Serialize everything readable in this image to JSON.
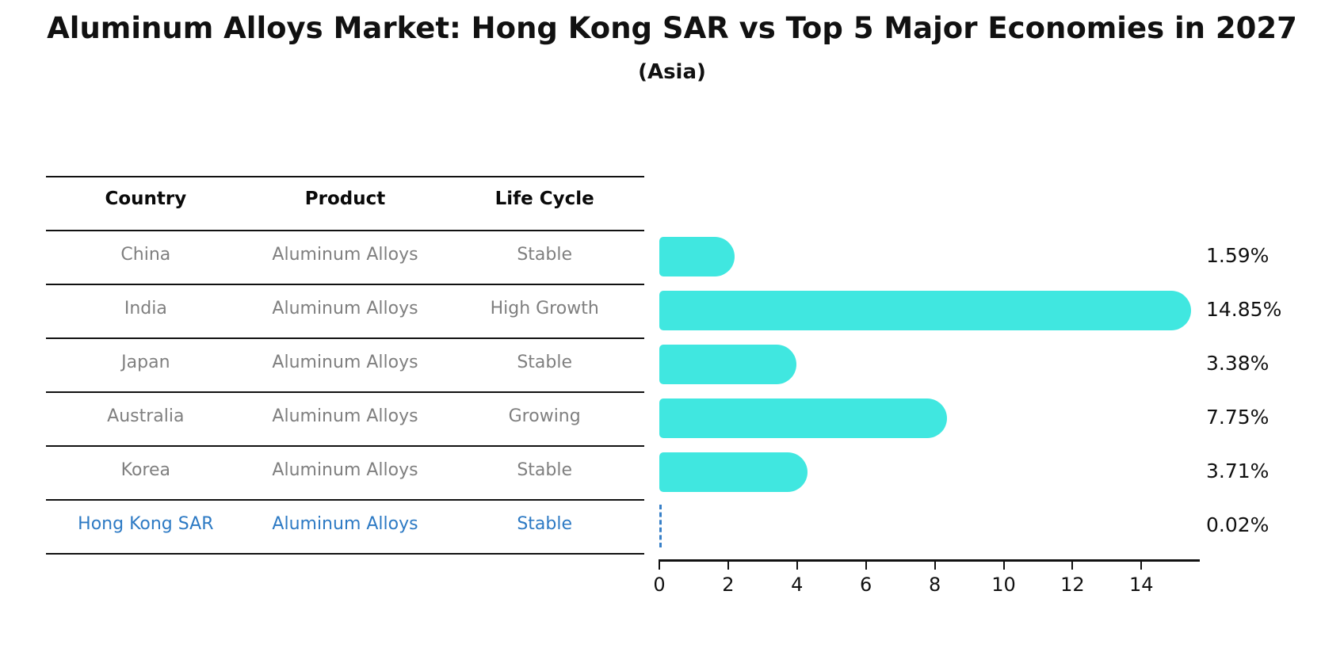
{
  "title": "Aluminum Alloys Market: Hong Kong SAR vs Top 5 Major Economies in 2027",
  "subtitle": "(Asia)",
  "table": {
    "headers": [
      "Country",
      "Product",
      "Life Cycle"
    ],
    "rows": [
      {
        "country": "China",
        "product": "Aluminum Alloys",
        "life_cycle": "Stable",
        "highlight": false
      },
      {
        "country": "India",
        "product": "Aluminum Alloys",
        "life_cycle": "High Growth",
        "highlight": false
      },
      {
        "country": "Japan",
        "product": "Aluminum Alloys",
        "life_cycle": "Stable",
        "highlight": false
      },
      {
        "country": "Australia",
        "product": "Aluminum Alloys",
        "life_cycle": "Growing",
        "highlight": false
      },
      {
        "country": "Korea",
        "product": "Aluminum Alloys",
        "life_cycle": "Stable",
        "highlight": false
      },
      {
        "country": "Hong Kong SAR",
        "product": "Aluminum Alloys",
        "life_cycle": "Stable",
        "highlight": true
      }
    ]
  },
  "chart_data": {
    "type": "bar",
    "orientation": "horizontal",
    "categories": [
      "China",
      "India",
      "Japan",
      "Australia",
      "Korea",
      "Hong Kong SAR"
    ],
    "values": [
      1.59,
      14.85,
      3.38,
      7.75,
      3.71,
      0.02
    ],
    "value_labels": [
      "1.59%",
      "14.85%",
      "3.38%",
      "7.75%",
      "3.71%",
      "0.02%"
    ],
    "title": "Aluminum Alloys Market: Hong Kong SAR vs Top 5 Major Economies in 2027",
    "subtitle": "(Asia)",
    "xlabel": "",
    "ylabel": "",
    "x_ticks": [
      0,
      2,
      4,
      6,
      8,
      10,
      12,
      14
    ],
    "xlim": [
      0,
      15.65
    ],
    "grid": false,
    "legend": "none",
    "bar_color": "#40e7e0",
    "highlight_bar_style": "dashed outline",
    "highlight_color": "#2d7ac4"
  },
  "colors": {
    "bar_fill": "#40e7e0",
    "highlight_blue": "#2d7ac4",
    "table_text_gray": "#7f7f7f",
    "text_black": "#111111"
  }
}
